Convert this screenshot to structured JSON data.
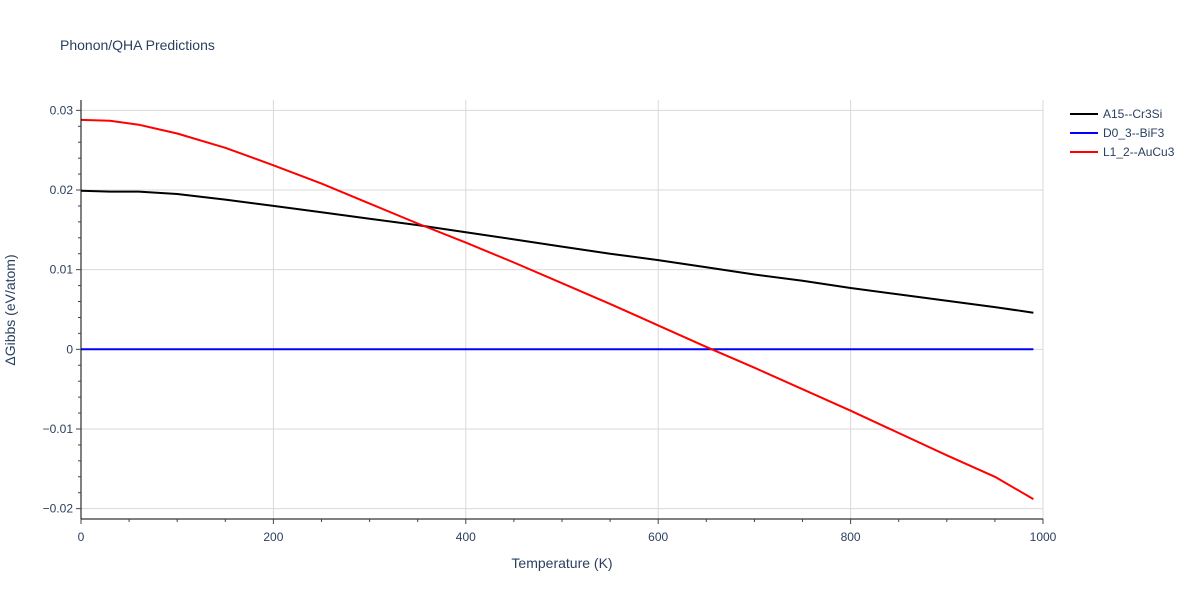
{
  "chart_data": {
    "type": "line",
    "title": "Phonon/QHA Predictions",
    "xlabel": "Temperature (K)",
    "ylabel": "ΔGibbs (eV/atom)",
    "xlim": [
      0,
      1000
    ],
    "ylim": [
      -0.0213,
      0.0313
    ],
    "x_ticks": [
      0,
      200,
      400,
      600,
      800,
      1000
    ],
    "x_tick_labels": [
      "0",
      "200",
      "400",
      "600",
      "800",
      "1000"
    ],
    "y_ticks": [
      -0.02,
      -0.01,
      0,
      0.01,
      0.02,
      0.03
    ],
    "y_tick_labels": [
      "−0.02",
      "−0.01",
      "0",
      "0.01",
      "0.02",
      "0.03"
    ],
    "grid": true,
    "legend_position": "top-right",
    "series": [
      {
        "name": "A15--Cr3Si",
        "color": "#000000",
        "x": [
          0,
          30,
          60,
          100,
          150,
          200,
          250,
          300,
          350,
          400,
          450,
          500,
          550,
          600,
          650,
          700,
          750,
          800,
          850,
          900,
          950,
          990
        ],
        "y": [
          0.0199,
          0.0198,
          0.0198,
          0.0195,
          0.0188,
          0.018,
          0.0172,
          0.0164,
          0.0156,
          0.0147,
          0.0138,
          0.0129,
          0.012,
          0.0112,
          0.0103,
          0.0094,
          0.0086,
          0.0077,
          0.0069,
          0.0061,
          0.0053,
          0.0046
        ]
      },
      {
        "name": "D0_3--BiF3",
        "color": "#0000ff",
        "x": [
          0,
          990
        ],
        "y": [
          0,
          0
        ]
      },
      {
        "name": "L1_2--AuCu3",
        "color": "#ff0000",
        "x": [
          0,
          30,
          60,
          100,
          150,
          200,
          250,
          300,
          350,
          400,
          450,
          500,
          550,
          600,
          650,
          700,
          750,
          800,
          850,
          900,
          950,
          990
        ],
        "y": [
          0.0288,
          0.0287,
          0.0282,
          0.0271,
          0.0253,
          0.0231,
          0.0208,
          0.0183,
          0.0158,
          0.0134,
          0.0109,
          0.0083,
          0.0057,
          0.003,
          0.0003,
          -0.0023,
          -0.005,
          -0.0077,
          -0.0105,
          -0.0133,
          -0.016,
          -0.0188
        ]
      }
    ]
  }
}
